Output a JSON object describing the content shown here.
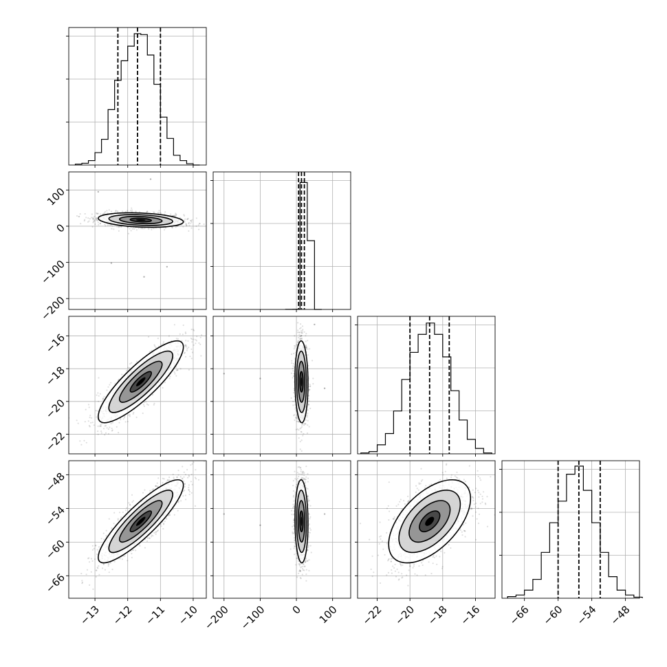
{
  "chart_data": {
    "type": "corner",
    "n_params": 4,
    "params": [
      {
        "index": 0,
        "range": [
          -13.8,
          -9.6
        ],
        "ticks": [
          -13,
          -12,
          -11,
          -10
        ],
        "tick_labels": [
          "−13",
          "−12",
          "−11",
          "−10"
        ],
        "hist_x0": -13.6,
        "hist_bin": 0.2,
        "hist_counts": [
          2,
          4,
          10,
          28,
          58,
          125,
          191,
          235,
          268,
          296,
          294,
          248,
          182,
          108,
          60,
          22,
          10,
          3,
          0
        ],
        "hist_ymax": 310,
        "quantiles": [
          -12.3,
          -11.7,
          -11.0
        ]
      },
      {
        "index": 1,
        "range": [
          -230,
          150
        ],
        "ticks": [
          -200,
          -100,
          0,
          100
        ],
        "tick_labels": [
          "−200",
          "−100",
          "0",
          "100"
        ],
        "hist_x0": -30,
        "hist_bin": 20,
        "hist_counts": [
          2,
          4,
          2400,
          1300,
          0
        ],
        "hist_ymax": 2600,
        "quantiles": [
          6,
          14,
          22
        ]
      },
      {
        "index": 2,
        "range": [
          -23.2,
          -14.8
        ],
        "ticks": [
          -22,
          -20,
          -18,
          -16
        ],
        "tick_labels": [
          "−22",
          "−20",
          "−18",
          "−16"
        ],
        "hist_x0": -23,
        "hist_bin": 0.5,
        "hist_counts": [
          2,
          5,
          20,
          45,
          95,
          165,
          225,
          265,
          290,
          265,
          215,
          140,
          75,
          32,
          12,
          2
        ],
        "hist_ymax": 305,
        "quantiles": [
          -20.0,
          -18.8,
          -17.6
        ]
      },
      {
        "index": 3,
        "range": [
          -70,
          -45.5
        ],
        "ticks": [
          -66,
          -60,
          -54,
          -48
        ],
        "tick_labels": [
          "−66",
          "−60",
          "−54",
          "−48"
        ],
        "hist_x0": -69,
        "hist_bin": 1.5,
        "hist_counts": [
          3,
          6,
          15,
          35,
          85,
          140,
          180,
          230,
          245,
          200,
          140,
          85,
          40,
          15,
          6,
          2
        ],
        "hist_ymax": 255,
        "quantiles": [
          -60.0,
          -56.3,
          -52.5
        ]
      }
    ],
    "pairs": [
      {
        "row": 1,
        "col": 0,
        "center": [
          -11.6,
          17
        ],
        "sigma": [
          0.65,
          10
        ],
        "rho": -0.25,
        "tilt": [
          -4.6,
          0.6
        ],
        "outliers": [
          [
            -12.9,
            95
          ],
          [
            -11.3,
            130
          ],
          [
            -12.5,
            -102
          ],
          [
            -10.8,
            -112
          ],
          [
            -11.5,
            -140
          ]
        ]
      },
      {
        "row": 2,
        "col": 0,
        "center": [
          -11.6,
          -18.8
        ],
        "sigma": [
          0.65,
          1.25
        ],
        "rho": 0.85
      },
      {
        "row": 3,
        "col": 0,
        "center": [
          -11.6,
          -56.3
        ],
        "sigma": [
          0.65,
          3.7
        ],
        "rho": 0.87
      },
      {
        "row": 2,
        "col": 1,
        "center": [
          14,
          -18.8
        ],
        "sigma": [
          9,
          1.25
        ],
        "rho": -0.05,
        "outliers": [
          [
            -100,
            -18.6
          ],
          [
            -200,
            -18.3
          ],
          [
            78,
            -19.2
          ],
          [
            50,
            -15.3
          ]
        ]
      },
      {
        "row": 3,
        "col": 1,
        "center": [
          14,
          -56.3
        ],
        "sigma": [
          9,
          3.7
        ],
        "rho": -0.05,
        "outliers": [
          [
            -100,
            -57
          ],
          [
            -200,
            -55
          ],
          [
            78,
            -55
          ]
        ]
      },
      {
        "row": 3,
        "col": 2,
        "center": [
          -18.8,
          -56.3
        ],
        "sigma": [
          1.25,
          3.7
        ],
        "rho": 0.55
      }
    ],
    "contour_levels_sigma": [
      0.5,
      1.0,
      1.5,
      2.0
    ],
    "grid": true,
    "legend": "none"
  }
}
